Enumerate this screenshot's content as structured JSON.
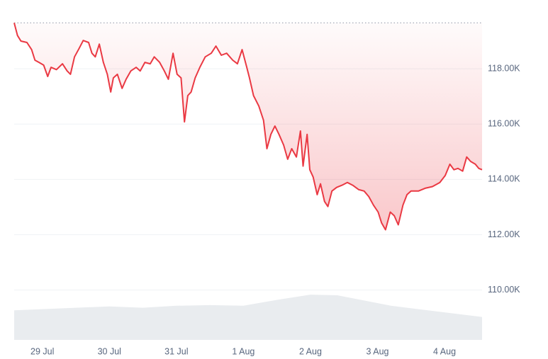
{
  "chart_data": {
    "type": "line",
    "grid": true,
    "xlim": [
      -0.42,
      6.56
    ],
    "xticks": [
      {
        "value": 0,
        "label": "29 Jul"
      },
      {
        "value": 1,
        "label": "30 Jul"
      },
      {
        "value": 2,
        "label": "31 Jul"
      },
      {
        "value": 3,
        "label": "1 Aug"
      },
      {
        "value": 4,
        "label": "2 Aug"
      },
      {
        "value": 5,
        "label": "3 Aug"
      },
      {
        "value": 6,
        "label": "4 Aug"
      }
    ],
    "ylim": [
      108200,
      120050
    ],
    "yticks": [
      {
        "value": 110000,
        "label": "110.00K"
      },
      {
        "value": 112000,
        "label": "112.00K"
      },
      {
        "value": 114000,
        "label": "114.00K"
      },
      {
        "value": 116000,
        "label": "116.00K"
      },
      {
        "value": 118000,
        "label": "118.00K"
      }
    ],
    "y2lim": [
      0,
      100
    ],
    "series": [
      {
        "color": "#ea3943",
        "x": [
          -0.42,
          -0.37,
          -0.32,
          -0.23,
          -0.16,
          -0.11,
          -0.05,
          0.02,
          0.08,
          0.13,
          0.21,
          0.3,
          0.37,
          0.42,
          0.48,
          0.55,
          0.61,
          0.69,
          0.74,
          0.79,
          0.85,
          0.91,
          0.97,
          1.02,
          1.06,
          1.12,
          1.19,
          1.25,
          1.32,
          1.4,
          1.46,
          1.53,
          1.61,
          1.67,
          1.75,
          1.82,
          1.88,
          1.95,
          2.01,
          2.07,
          2.12,
          2.17,
          2.22,
          2.28,
          2.35,
          2.43,
          2.52,
          2.59,
          2.67,
          2.75,
          2.84,
          2.91,
          2.98,
          3.05,
          3.09,
          3.15,
          3.23,
          3.3,
          3.35,
          3.41,
          3.47,
          3.53,
          3.6,
          3.66,
          3.72,
          3.79,
          3.85,
          3.89,
          3.95,
          3.99,
          4.04,
          4.1,
          4.15,
          4.21,
          4.26,
          4.32,
          4.39,
          4.47,
          4.55,
          4.63,
          4.72,
          4.8,
          4.87,
          4.94,
          5.01,
          5.06,
          5.12,
          5.19,
          5.25,
          5.31,
          5.38,
          5.44,
          5.5,
          5.61,
          5.71,
          5.82,
          5.93,
          6.01,
          6.08,
          6.14,
          6.2,
          6.27,
          6.33,
          6.39,
          6.46,
          6.51,
          6.56
        ],
        "values": [
          119660,
          119200,
          119000,
          118950,
          118690,
          118310,
          118230,
          118130,
          117720,
          118050,
          117970,
          118180,
          117920,
          117800,
          118430,
          118740,
          119020,
          118950,
          118560,
          118430,
          118890,
          118230,
          117800,
          117160,
          117670,
          117800,
          117290,
          117620,
          117920,
          118050,
          117920,
          118230,
          118180,
          118430,
          118230,
          117920,
          117620,
          118560,
          117800,
          117670,
          116080,
          117030,
          117160,
          117670,
          118050,
          118430,
          118560,
          118820,
          118490,
          118560,
          118310,
          118180,
          118690,
          118050,
          117670,
          117030,
          116650,
          116140,
          115110,
          115630,
          115930,
          115630,
          115240,
          114730,
          115110,
          114810,
          115750,
          114480,
          115630,
          114350,
          114090,
          113450,
          113840,
          113200,
          113020,
          113580,
          113710,
          113790,
          113890,
          113790,
          113630,
          113580,
          113380,
          113070,
          112820,
          112430,
          112180,
          112820,
          112690,
          112360,
          113070,
          113450,
          113580,
          113580,
          113680,
          113740,
          113890,
          114140,
          114550,
          114350,
          114400,
          114300,
          114810,
          114650,
          114550,
          114400,
          114350
        ]
      },
      {
        "color": "#e9ecef",
        "axis": "y2",
        "x": [
          -0.42,
          0.5,
          1.0,
          1.5,
          2.0,
          2.5,
          3.0,
          3.5,
          4.0,
          4.4,
          4.8,
          5.2,
          5.6,
          6.0,
          6.56
        ],
        "values": [
          9.0,
          9.8,
          10.2,
          9.8,
          10.4,
          10.6,
          10.4,
          12.2,
          13.8,
          13.6,
          12.0,
          10.4,
          9.4,
          8.4,
          7.0
        ]
      }
    ]
  }
}
